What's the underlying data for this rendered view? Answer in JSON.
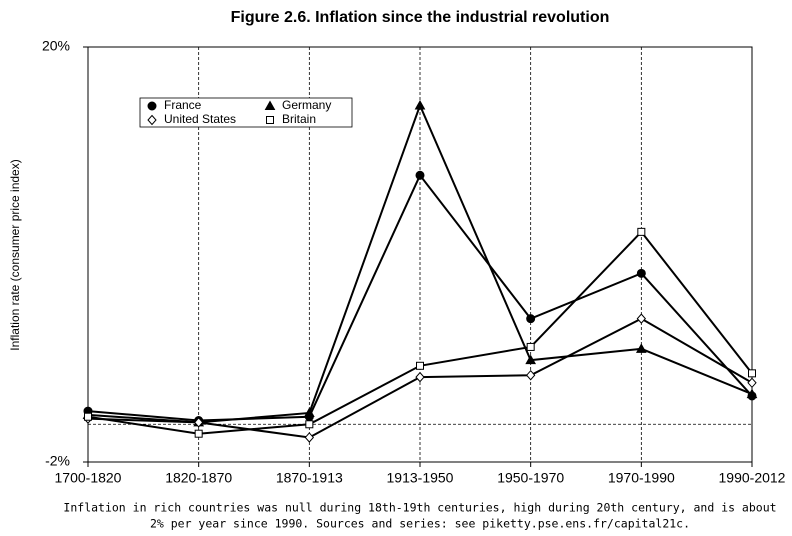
{
  "chart_data": {
    "type": "line",
    "title": "Figure 2.6. Inflation since the industrial revolution",
    "ylabel": "Inflation rate (consumer price index)",
    "note": [
      "Inflation in rich countries was null during 18th-19th centuries, high during 20th century, and is about",
      "2% per year since 1990. Sources and series: see piketty.pse.ens.fr/capital21c."
    ],
    "categories": [
      "1700-1820",
      "1820-1870",
      "1870-1913",
      "1913-1950",
      "1950-1970",
      "1970-1990",
      "1990-2012"
    ],
    "series": [
      {
        "name": "France",
        "color": "#000000",
        "marker": "circle",
        "fill": true,
        "values": [
          0.7,
          0.2,
          0.4,
          13.2,
          5.6,
          8.0,
          1.5
        ]
      },
      {
        "name": "Germany",
        "color": "#000000",
        "marker": "triangle",
        "fill": true,
        "values": [
          0.5,
          0.1,
          0.6,
          16.9,
          3.4,
          4.0,
          1.6
        ]
      },
      {
        "name": "United States",
        "color": "#000000",
        "marker": "diamond",
        "fill": false,
        "values": [
          0.3,
          0.1,
          -0.7,
          2.5,
          2.6,
          5.6,
          2.2
        ]
      },
      {
        "name": "Britain",
        "color": "#000000",
        "marker": "square",
        "fill": false,
        "values": [
          0.4,
          -0.5,
          0.0,
          3.1,
          4.1,
          10.2,
          2.7
        ]
      }
    ],
    "ylim": [
      -2,
      20
    ],
    "yticks": [
      {
        "value": -2,
        "label": "-2%"
      },
      {
        "value": 20,
        "label": "20%"
      }
    ],
    "zero_line": true,
    "vertical_grid": true
  }
}
